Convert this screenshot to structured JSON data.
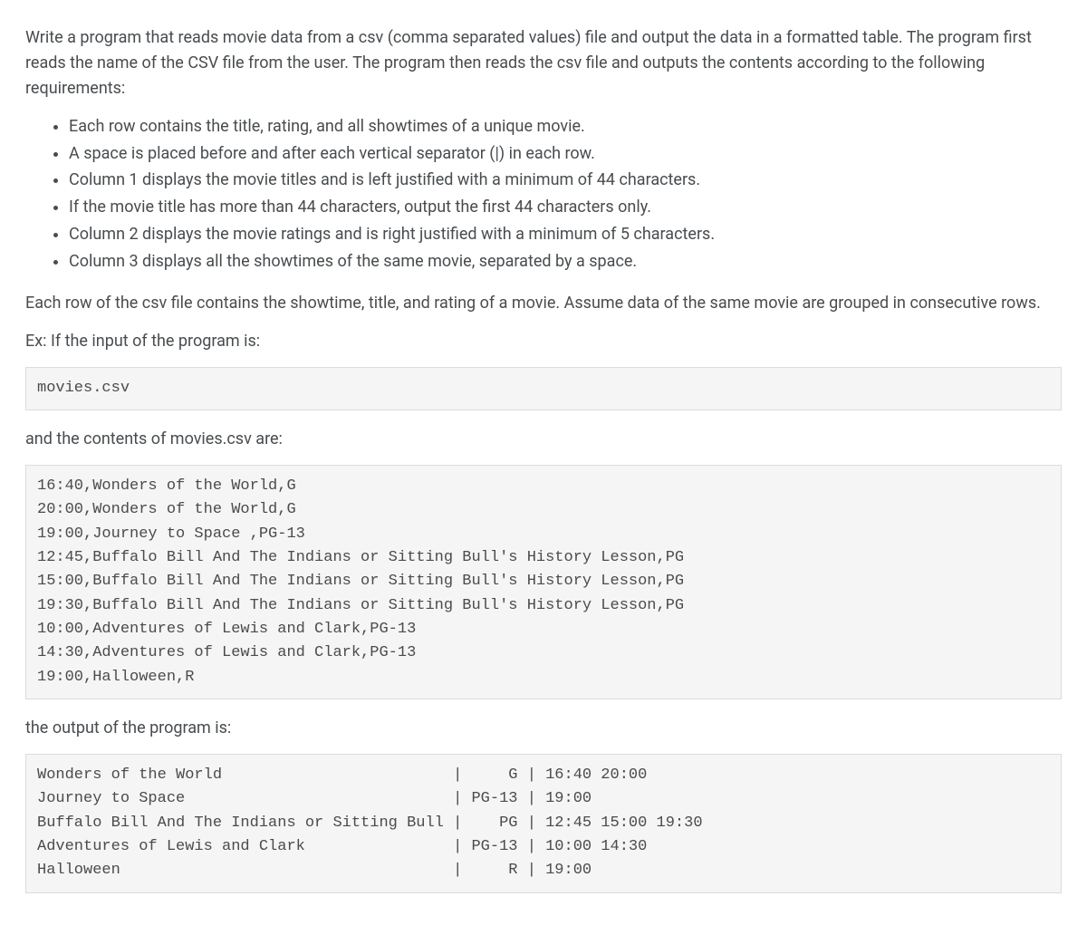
{
  "intro1": "Write a program that reads movie data from a csv (comma separated values) file and output the data in a formatted table. The program first reads the name of the CSV file from the user. The program then reads the csv file and outputs the contents according to the following requirements:",
  "bullets": [
    "Each row contains the title, rating, and all showtimes of a unique movie.",
    "A space is placed before and after each vertical separator (|) in each row.",
    "Column 1 displays the movie titles and is left justified with a minimum of 44 characters.",
    "If the movie title has more than 44 characters, output the first 44 characters only.",
    "Column 2 displays the movie ratings and is right justified with a minimum of 5 characters.",
    "Column 3 displays all the showtimes of the same movie, separated by a space."
  ],
  "intro2": "Each row of the csv file contains the showtime, title, and rating of a movie. Assume data of the same movie are grouped in consecutive rows.",
  "label_input": "Ex: If the input of the program is:",
  "input_block": "movies.csv",
  "label_contents": "and the contents of movies.csv are:",
  "csv_block": "16:40,Wonders of the World,G\n20:00,Wonders of the World,G\n19:00,Journey to Space ,PG-13\n12:45,Buffalo Bill And The Indians or Sitting Bull's History Lesson,PG\n15:00,Buffalo Bill And The Indians or Sitting Bull's History Lesson,PG\n19:30,Buffalo Bill And The Indians or Sitting Bull's History Lesson,PG\n10:00,Adventures of Lewis and Clark,PG-13\n14:30,Adventures of Lewis and Clark,PG-13\n19:00,Halloween,R",
  "label_output": "the output of the program is:",
  "output_block": "Wonders of the World                         |     G | 16:40 20:00\nJourney to Space                             | PG-13 | 19:00\nBuffalo Bill And The Indians or Sitting Bull |    PG | 12:45 15:00 19:30\nAdventures of Lewis and Clark                | PG-13 | 10:00 14:30\nHalloween                                    |     R | 19:00"
}
